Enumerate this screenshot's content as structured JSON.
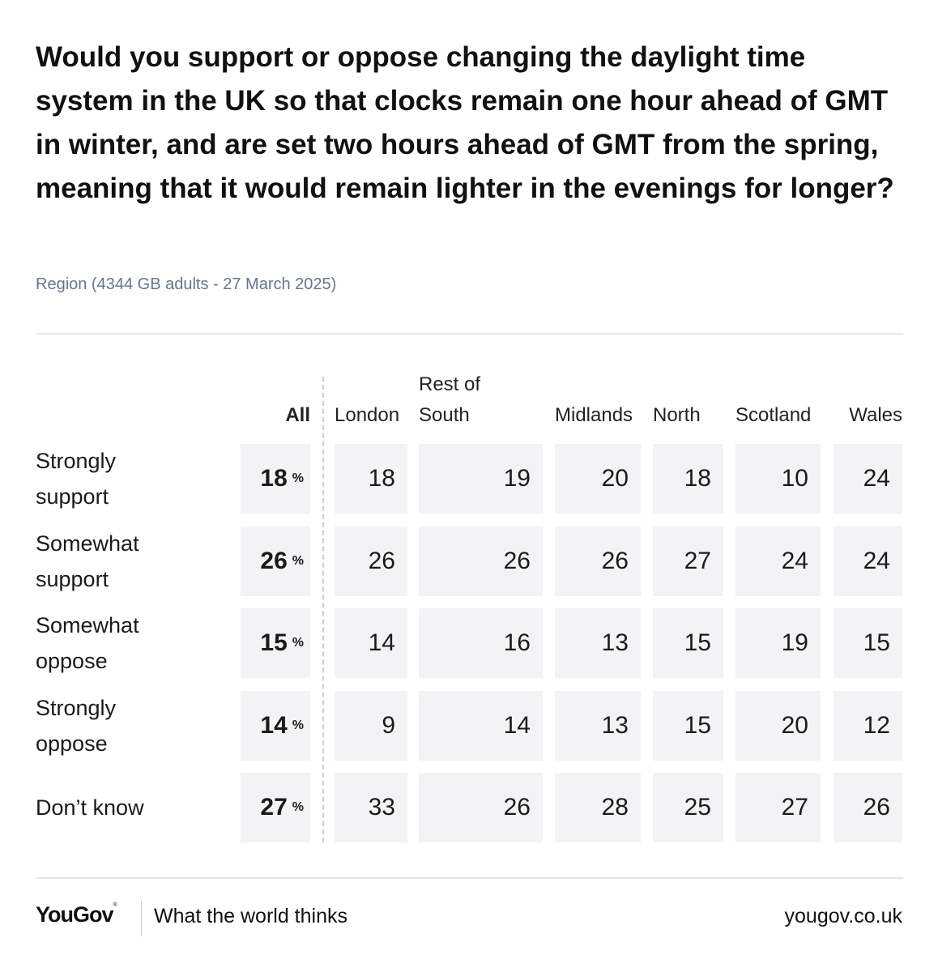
{
  "chart_data": {
    "type": "table",
    "title": "Would you support or oppose changing the daylight time system in the UK so that clocks remain one hour ahead of GMT in winter, and are set two hours ahead of GMT from the spring, meaning that it would remain lighter in the evenings for longer?",
    "subtitle": "Region (4344 GB adults - 27 March 2025)",
    "percent_symbol": "%",
    "columns": [
      "All",
      "London",
      "Rest of South",
      "Midlands",
      "North",
      "Scotland",
      "Wales"
    ],
    "rows": [
      {
        "label": "Strongly support",
        "values": [
          "18",
          "18",
          "19",
          "20",
          "18",
          "10",
          "24"
        ]
      },
      {
        "label": "Somewhat support",
        "values": [
          "26",
          "26",
          "26",
          "26",
          "27",
          "24",
          "24"
        ]
      },
      {
        "label": "Somewhat oppose",
        "values": [
          "15",
          "14",
          "16",
          "13",
          "15",
          "19",
          "15"
        ]
      },
      {
        "label": "Strongly oppose",
        "values": [
          "14",
          "9",
          "14",
          "13",
          "15",
          "20",
          "12"
        ]
      },
      {
        "label": "Don’t know",
        "values": [
          "27",
          "33",
          "26",
          "28",
          "25",
          "27",
          "26"
        ]
      }
    ]
  },
  "footer": {
    "brand": "YouGov",
    "brand_mark": "®",
    "tagline": "What the world thinks",
    "url": "yougov.co.uk"
  }
}
